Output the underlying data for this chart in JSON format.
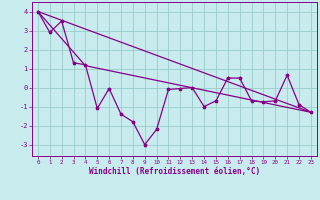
{
  "xlabel": "Windchill (Refroidissement éolien,°C)",
  "bg_color": "#c8eced",
  "line_color": "#880088",
  "grid_color": "#aadddd",
  "xlim": [
    -0.5,
    23.5
  ],
  "ylim": [
    -3.6,
    4.5
  ],
  "yticks": [
    -3,
    -2,
    -1,
    0,
    1,
    2,
    3,
    4
  ],
  "xticks": [
    0,
    1,
    2,
    3,
    4,
    5,
    6,
    7,
    8,
    9,
    10,
    11,
    12,
    13,
    14,
    15,
    16,
    17,
    18,
    19,
    20,
    21,
    22,
    23
  ],
  "series1_x": [
    0,
    1,
    2,
    3,
    4,
    5,
    6,
    7,
    8,
    9,
    10,
    11,
    12,
    13,
    14,
    15,
    16,
    17,
    18,
    19,
    20,
    21,
    22,
    23
  ],
  "series1_y": [
    4.0,
    2.9,
    3.5,
    1.3,
    1.2,
    -1.1,
    -0.05,
    -1.4,
    -1.8,
    -3.0,
    -2.2,
    -0.1,
    -0.05,
    0.0,
    -1.0,
    -0.7,
    0.5,
    0.5,
    -0.7,
    -0.75,
    -0.7,
    0.65,
    -0.9,
    -1.3
  ],
  "series2_x": [
    0,
    23
  ],
  "series2_y": [
    4.0,
    -1.3
  ],
  "series3_x": [
    0,
    4,
    23
  ],
  "series3_y": [
    4.0,
    1.15,
    -1.3
  ]
}
